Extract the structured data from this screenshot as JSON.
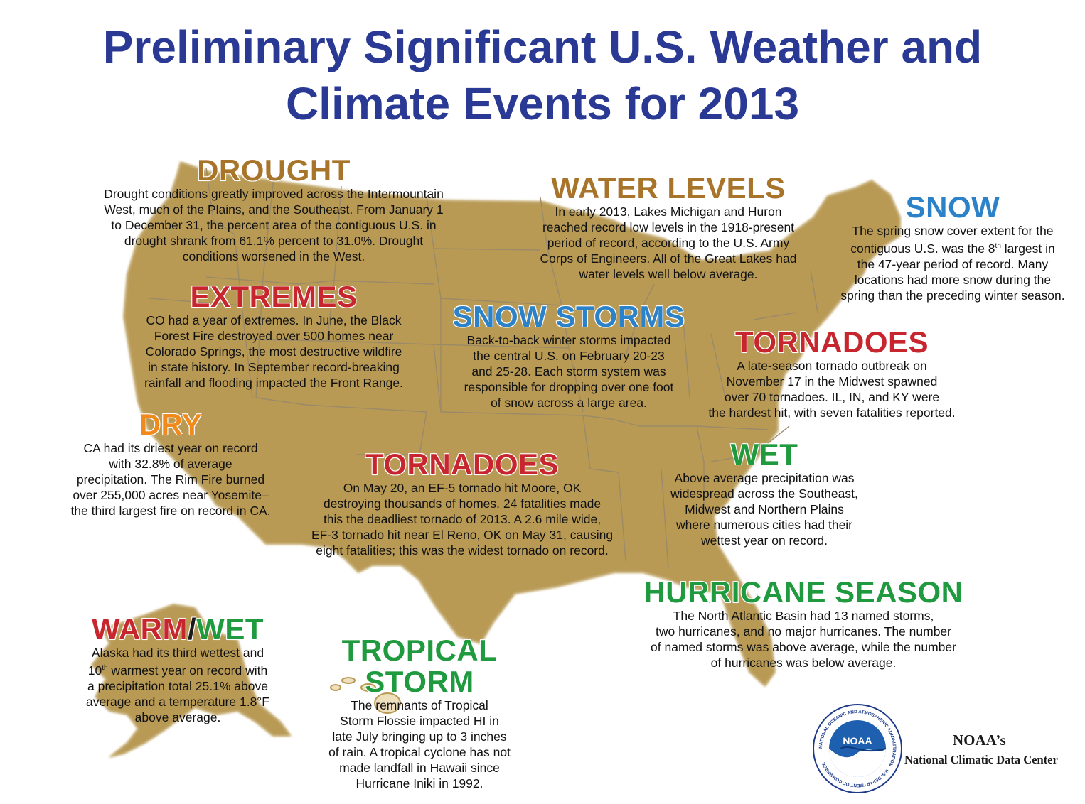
{
  "title": {
    "line1": "Preliminary Significant U.S. Weather and",
    "line2": "Climate Events for 2013"
  },
  "colors": {
    "title": "#2a3a94",
    "land": "#efe0bd",
    "land_shadow": "#b89a55",
    "state_lines": "#9b8a68",
    "heading_brown": "#a8742a",
    "heading_red": "#c8262e",
    "heading_blue": "#2c82c9",
    "heading_green": "#1f9a3e",
    "heading_orange": "#f08a1c"
  },
  "events": {
    "drought": {
      "heading": "DROUGHT",
      "lines": [
        "Drought conditions greatly improved across the Intermountain",
        "West, much of the Plains, and the Southeast. From January 1",
        "to December 31, the percent area of the contiguous U.S. in",
        "drought shrank from 61.1% percent to 31.0%.  Drought",
        "conditions worsened in the West."
      ]
    },
    "water_levels": {
      "heading": "WATER LEVELS",
      "lines": [
        "In early 2013, Lakes Michigan and Huron",
        "reached record low levels in the 1918-present",
        "period of record, according to the U.S. Army",
        "Corps of Engineers. All of the Great Lakes had",
        "water levels well below average."
      ]
    },
    "snow": {
      "heading": "SNOW",
      "line1": "The spring snow cover extent for the",
      "line2_pre": "contiguous U.S. was the 8",
      "line2_sup": "th",
      "line2_post": " largest in",
      "lines_rest": [
        "the 47-year period of record. Many",
        "locations had more snow during the",
        "spring than the preceding winter season."
      ]
    },
    "extremes": {
      "heading": "EXTREMES",
      "lines": [
        "CO had a year of extremes. In June, the Black",
        "Forest Fire destroyed over 500 homes near",
        "Colorado Springs, the most destructive wildfire",
        "in state history. In September record-breaking",
        "rainfall and flooding impacted the Front Range."
      ]
    },
    "snow_storms": {
      "heading": "SNOW STORMS",
      "lines": [
        "Back-to-back winter storms impacted",
        "the central U.S. on February 20-23",
        "and 25-28. Each storm system was",
        "responsible for dropping over one foot",
        "of snow across a large area."
      ]
    },
    "tornadoes_midwest": {
      "heading": "TORNADOES",
      "lines": [
        "A late-season tornado outbreak on",
        "November 17 in the Midwest spawned",
        "over 70 tornadoes. IL, IN, and KY were",
        "the hardest hit, with seven fatalities reported."
      ]
    },
    "dry": {
      "heading": "DRY",
      "lines": [
        "CA had its driest year on record",
        "with 32.8% of average",
        "precipitation. The Rim Fire burned",
        "over 255,000 acres near Yosemite–",
        "the third largest fire on record in CA."
      ]
    },
    "tornadoes_ok": {
      "heading": "TORNADOES",
      "lines": [
        "On May 20, an EF-5 tornado hit Moore, OK",
        "destroying thousands of homes. 24 fatalities made",
        "this the deadliest tornado of 2013. A 2.6 mile wide,",
        "EF-3 tornado hit near El Reno, OK on May 31, causing",
        "eight fatalities; this was the widest tornado on record."
      ]
    },
    "wet": {
      "heading": "WET",
      "lines": [
        "Above average precipitation was",
        "widespread across the Southeast,",
        "Midwest and Northern Plains",
        "where numerous cities had their",
        "wettest year on record."
      ]
    },
    "hurricane_season": {
      "heading": "HURRICANE SEASON",
      "lines": [
        "The North Atlantic Basin had 13 named storms,",
        "two hurricanes, and no major hurricanes. The number",
        "of named storms was above average, while the number",
        "of hurricanes was below average."
      ]
    },
    "warm_wet": {
      "heading_part1": "WARM",
      "heading_slash": "/",
      "heading_part2": "WET",
      "line1": "Alaska had its third wettest and",
      "line2_pre": "10",
      "line2_sup": "th",
      "line2_post": " warmest year on record with",
      "lines_rest": [
        "a precipitation total 25.1% above",
        "average and a temperature 1.8°F",
        "above average."
      ]
    },
    "tropical_storm": {
      "heading_line1": "TROPICAL",
      "heading_line2": "STORM",
      "lines": [
        "The remnants of Tropical",
        "Storm Flossie impacted HI in",
        "late July bringing up to 3 inches",
        "of rain. A tropical cyclone has not",
        "made landfall in Hawaii since",
        "Hurricane Iniki in 1992."
      ]
    }
  },
  "logo": {
    "center_text": "NOAA",
    "ring_text": "NATIONAL OCEANIC AND ATMOSPHERIC ADMINISTRATION · U.S. DEPARTMENT OF COMMERCE"
  },
  "credit": {
    "line1": "NOAA’s",
    "line2": "National Climatic Data Center"
  }
}
